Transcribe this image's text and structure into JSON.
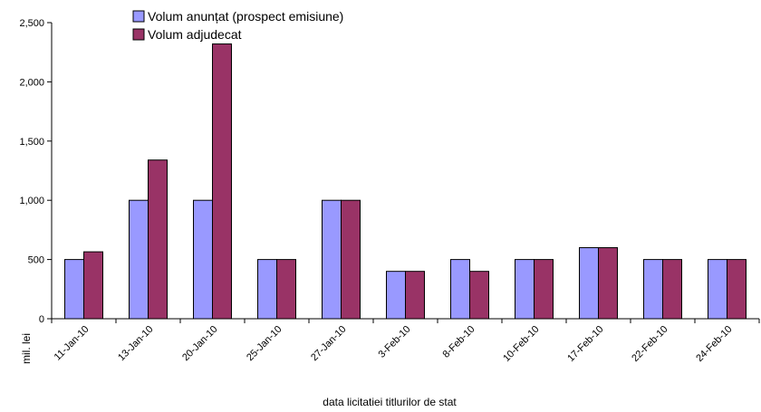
{
  "chart_data": {
    "type": "bar",
    "categories": [
      "11-Jan-10",
      "13-Jan-10",
      "20-Jan-10",
      "25-Jan-10",
      "27-Jan-10",
      "3-Feb-10",
      "8-Feb-10",
      "10-Feb-10",
      "17-Feb-10",
      "22-Feb-10",
      "24-Feb-10"
    ],
    "series": [
      {
        "name": "Volum anunțat (prospect emisiune)",
        "color": "#9999ff",
        "values": [
          500,
          1000,
          1000,
          500,
          1000,
          400,
          500,
          500,
          600,
          500,
          500
        ]
      },
      {
        "name": "Volum adjudecat",
        "color": "#993366",
        "values": [
          565,
          1340,
          2320,
          500,
          1000,
          400,
          400,
          500,
          600,
          500,
          500
        ]
      }
    ],
    "xlabel": "data  licitatiei  titlurilor de stat",
    "ylabel": "mil. lei",
    "ylim": [
      0,
      2500
    ],
    "yticks": [
      0,
      500,
      1000,
      1500,
      2000,
      2500
    ],
    "ytick_labels": [
      "0",
      "500",
      "1,000",
      "1,500",
      "2,000",
      "2,500"
    ],
    "grid": false,
    "legend_position": "top-left"
  }
}
